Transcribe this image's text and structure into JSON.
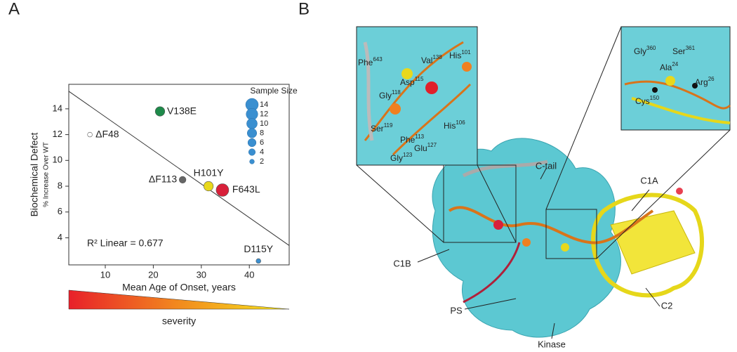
{
  "panel_labels": [
    "A",
    "B"
  ],
  "chart_data": {
    "type": "scatter",
    "xlabel": "Mean Age of Onset, years",
    "ylabel": "Biochemical Defect",
    "ylabel_sub": "% Increase Over WT",
    "x": [
      21.4,
      6.8,
      26.1,
      31.5,
      34.4,
      41.9
    ],
    "values": [
      13.8,
      12.0,
      8.5,
      8.0,
      7.7,
      2.2
    ],
    "sizes": [
      8,
      2,
      4,
      8,
      14,
      2
    ],
    "point_labels": [
      "V138E",
      "ΔF48",
      "ΔF113",
      "H101Y",
      "F643L",
      "D115Y"
    ],
    "colors": [
      "#1e8a4a",
      "#ffffff",
      "#666666",
      "#e8d81c",
      "#d8203a",
      "#3a8fd0"
    ],
    "xlim": [
      2.4,
      48.3
    ],
    "xticks": [
      10,
      20,
      30,
      40
    ],
    "ylim": [
      1.9,
      15.9
    ],
    "yticks": [
      4,
      6,
      8,
      10,
      12,
      14
    ],
    "trendline": {
      "x": [
        2.4,
        48.3
      ],
      "y": [
        15.36,
        3.4
      ]
    },
    "annotation": "R² Linear = 0.677",
    "size_legend": {
      "title": "Sample Size",
      "sizes": [
        14,
        12,
        10,
        8,
        6,
        4,
        2
      ],
      "color": "#3a8fd0"
    },
    "severity_label": "severity"
  },
  "structure": {
    "labels": [
      "C-tail",
      "C1A",
      "C1B",
      "C2",
      "PS",
      "Kinase"
    ],
    "inset_left": [
      {
        "name": "Phe",
        "num": "643"
      },
      {
        "name": "Asp",
        "num": "115"
      },
      {
        "name": "Val",
        "num": "138"
      },
      {
        "name": "His",
        "num": "101"
      },
      {
        "name": "Gly",
        "num": "118"
      },
      {
        "name": "Ser",
        "num": "119"
      },
      {
        "name": "Phe",
        "num": "113"
      },
      {
        "name": "His",
        "num": "106"
      },
      {
        "name": "Glu",
        "num": "127"
      },
      {
        "name": "Gly",
        "num": "123"
      }
    ],
    "inset_right": [
      {
        "name": "Gly",
        "num": "360"
      },
      {
        "name": "Ser",
        "num": "361"
      },
      {
        "name": "Ala",
        "num": "24"
      },
      {
        "name": "Arg",
        "num": "26"
      },
      {
        "name": "Cys",
        "num": "150"
      }
    ]
  }
}
